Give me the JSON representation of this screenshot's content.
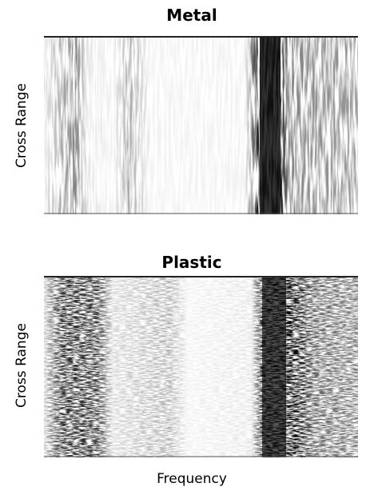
{
  "panels": [
    {
      "title": "Metal",
      "y_label": "Cross Range"
    },
    {
      "title": "Plastic",
      "y_label": "Cross Range"
    }
  ],
  "x_label": "Frequency"
}
